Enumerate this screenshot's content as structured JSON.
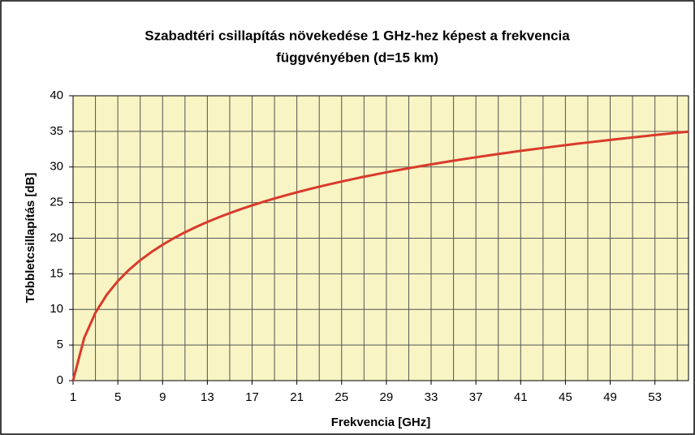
{
  "chart_data": {
    "type": "line",
    "title_lines": [
      "Szabadtéri csillapítás növekedése 1 GHz-hez képest a frekvencia",
      "függvényében  (d=15 km)"
    ],
    "x_label": "Frekvencia [GHz]",
    "y_label": "Többletcsillapítás [dB]",
    "x": [
      1,
      2,
      3,
      4,
      5,
      6,
      7,
      8,
      9,
      10,
      11,
      12,
      13,
      14,
      15,
      16,
      17,
      18,
      19,
      20,
      21,
      22,
      23,
      24,
      25,
      26,
      27,
      28,
      29,
      30,
      31,
      32,
      33,
      34,
      35,
      36,
      37,
      38,
      39,
      40,
      41,
      42,
      43,
      44,
      45,
      46,
      47,
      48,
      49,
      50,
      51,
      52,
      53,
      54,
      55,
      56
    ],
    "series": [
      {
        "color": "#d93a2b",
        "values": [
          0,
          6.02,
          9.54,
          12.04,
          13.98,
          15.56,
          16.9,
          18.06,
          19.08,
          20,
          20.83,
          21.58,
          22.28,
          22.92,
          23.52,
          24.08,
          24.61,
          25.11,
          25.58,
          26.02,
          26.44,
          26.85,
          27.23,
          27.6,
          27.96,
          28.3,
          28.63,
          28.94,
          29.25,
          29.54,
          29.83,
          30.1,
          30.37,
          30.63,
          30.88,
          31.13,
          31.36,
          31.6,
          31.82,
          32.04,
          32.26,
          32.46,
          32.67,
          32.87,
          33.06,
          33.26,
          33.44,
          33.62,
          33.8,
          33.98,
          34.15,
          34.32,
          34.49,
          34.65,
          34.81,
          34.96
        ]
      }
    ],
    "xlim": [
      1,
      56
    ],
    "xticks": [
      1,
      5,
      9,
      13,
      17,
      21,
      25,
      29,
      33,
      37,
      41,
      45,
      49,
      53
    ],
    "x_minor_ticks": [
      3,
      7,
      11,
      15,
      19,
      23,
      27,
      31,
      35,
      39,
      43,
      47,
      51,
      55
    ],
    "ylim": [
      0,
      40
    ],
    "yticks": [
      0,
      5,
      10,
      15,
      20,
      25,
      30,
      35,
      40
    ],
    "grid": true,
    "plot_background": "#f8f4c4"
  }
}
